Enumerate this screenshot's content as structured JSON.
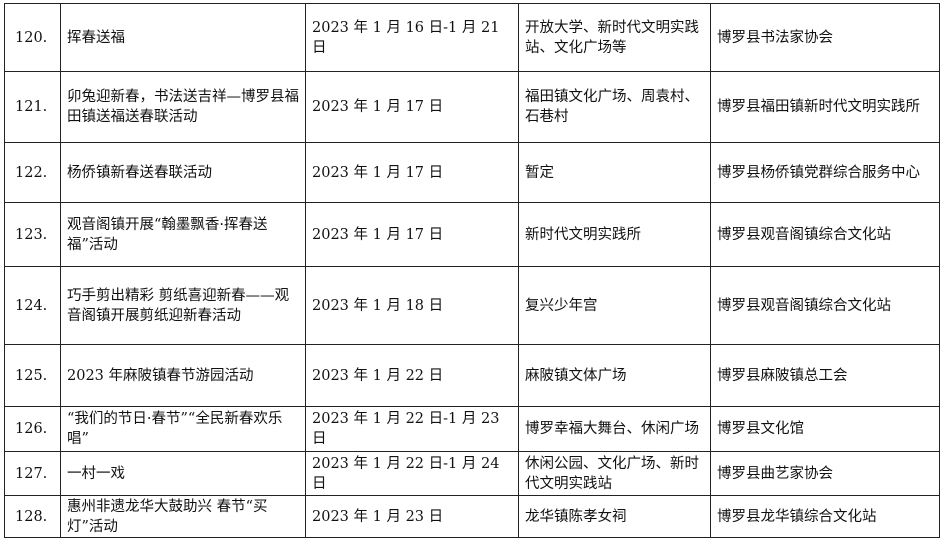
{
  "rows": [
    {
      "no": "120.",
      "name": "挥春送福",
      "date": "2023 年 1 月 16 日-1 月 21 日",
      "place": "开放大学、新时代文明实践站、文化广场等",
      "org": "博罗县书法家协会"
    },
    {
      "no": "121.",
      "name": "卯兔迎新春，书法送吉祥—博罗县福田镇送福送春联活动",
      "date": "2023 年 1 月 17 日",
      "place": "福田镇文化广场、周袁村、石巷村",
      "org": "博罗县福田镇新时代文明实践所"
    },
    {
      "no": "122.",
      "name": "杨侨镇新春送春联活动",
      "date": "2023 年 1 月 17 日",
      "place": "暂定",
      "org": "博罗县杨侨镇党群综合服务中心"
    },
    {
      "no": "123.",
      "name": "观音阁镇开展“翰墨飘香·挥春送福”活动",
      "date": "2023 年 1 月 17 日",
      "place": "新时代文明实践所",
      "org": "博罗县观音阁镇综合文化站"
    },
    {
      "no": "124.",
      "name": "巧手剪出精彩 剪纸喜迎新春——观音阁镇开展剪纸迎新春活动",
      "date": "2023 年 1 月 18 日",
      "place": "复兴少年宫",
      "org": "博罗县观音阁镇综合文化站"
    },
    {
      "no": "125.",
      "name": "2023 年麻陂镇春节游园活动",
      "date": "2023 年 1 月 22 日",
      "place": "麻陂镇文体广场",
      "org": "博罗县麻陂镇总工会"
    },
    {
      "no": "126.",
      "name": "“我们的节日·春节”“全民新春欢乐唱”",
      "date": "2023 年 1 月 22 日-1 月 23 日",
      "place": "博罗幸福大舞台、休闲广场",
      "org": "博罗县文化馆"
    },
    {
      "no": "127.",
      "name": "一村一戏",
      "date": "2023 年 1 月 22 日-1 月 24 日",
      "place": "休闲公园、文化广场、新时代文明实践站",
      "org": "博罗县曲艺家协会"
    },
    {
      "no": "128.",
      "name": "惠州非遗龙华大鼓助兴 春节“买灯”活动",
      "date": "2023 年 1 月 23 日",
      "place": "龙华镇陈孝女祠",
      "org": "博罗县龙华镇综合文化站"
    }
  ]
}
